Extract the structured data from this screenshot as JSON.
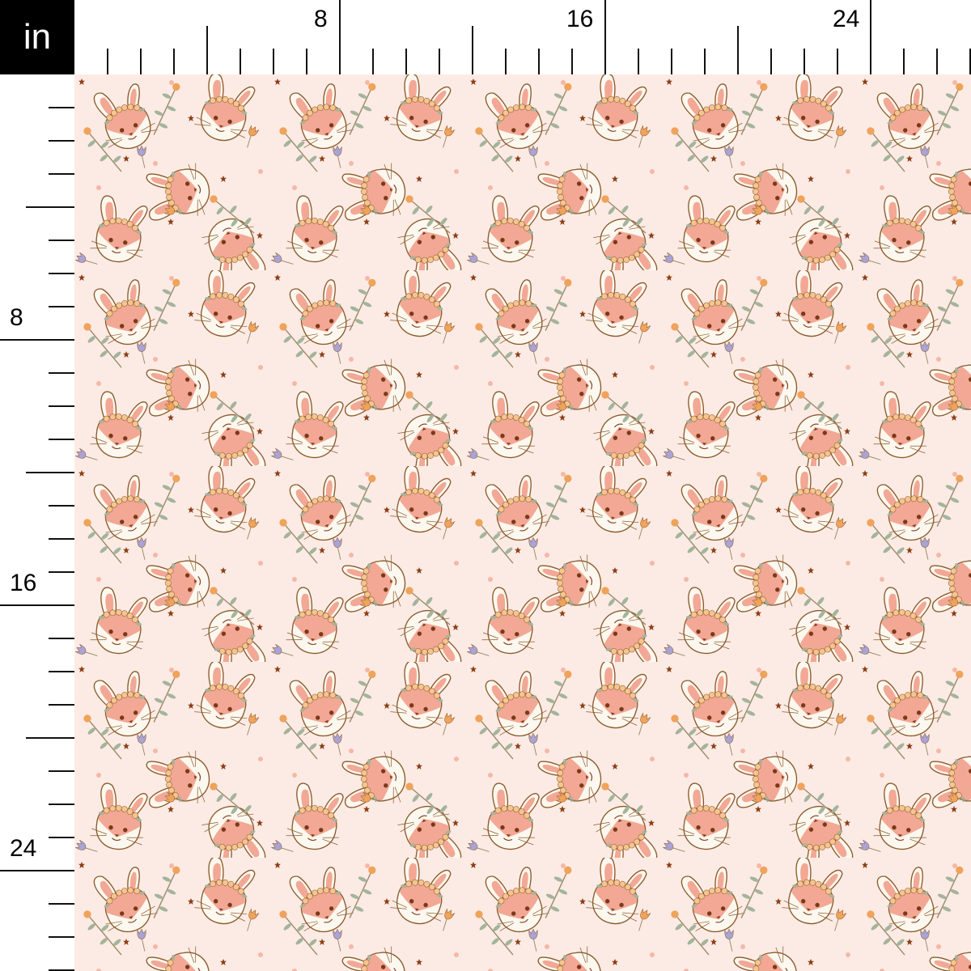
{
  "ruler": {
    "unit": "in",
    "top_labels": [
      "8",
      "16",
      "24"
    ],
    "left_labels": [
      "8",
      "16",
      "24"
    ]
  },
  "fabric": {
    "motif": "bunny heads with flower crowns, tulips, stars and sprigs",
    "colors": {
      "background": "#fcebe4",
      "bunny_white": "#fdf8ef",
      "bunny_pink": "#f2a895",
      "outline": "#8a5a2c",
      "tulip_orange": "#f0a35a",
      "tulip_purple": "#a9a3d6",
      "star": "#8b3f17",
      "leaf": "#a4b49c",
      "flower": "#f6c58f"
    }
  }
}
